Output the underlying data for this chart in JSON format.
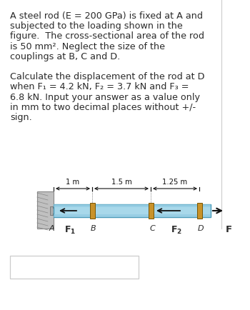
{
  "line1": "A steel rod (E = 200 GPa) is fixed at A and",
  "line2": "subjected to the loading shown in the",
  "line3": "figure.  The cross-sectional area of the rod",
  "line4": "is 50 mm². Neglect the size of the",
  "line5": "couplings at B, C and D.",
  "line6": "",
  "line7": "Calculate the displacement of the rod at D",
  "line8": "when F₁ = 4.2 kN, F₂ = 3.7 kN and F₃ =",
  "line9": "6.8 kN. Input your answer as a value only",
  "line10": "in mm to two decimal places without +/-",
  "line11": "sign.",
  "bg_color": "#ffffff",
  "text_color": "#2a2a2a",
  "rod_fill": "#a8d8ea",
  "rod_edge": "#4a9ab8",
  "rod_dark": "#5a9ab0",
  "coupling_fill": "#c8922a",
  "coupling_edge": "#7a5500",
  "wall_fill": "#c0c0c0",
  "wall_edge": "#888888",
  "dim_labels": [
    "1 m",
    "1.5 m",
    "1.25 m"
  ],
  "fig_width": 3.5,
  "fig_height": 4.34,
  "dpi": 100
}
